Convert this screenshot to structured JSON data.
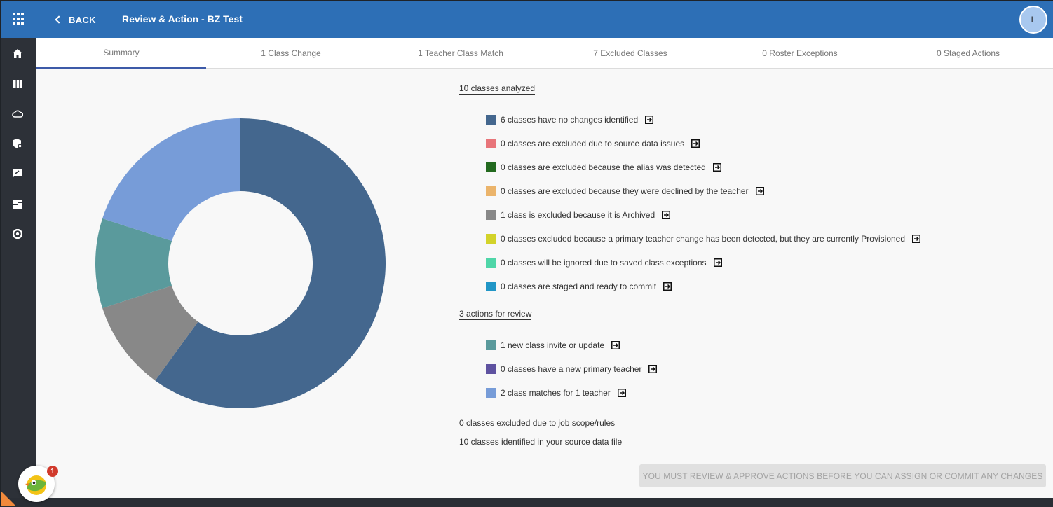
{
  "header": {
    "back_label": "BACK",
    "title": "Review & Action - BZ Test",
    "avatar_initial": "L"
  },
  "sidebar": {
    "icons": [
      "home-icon",
      "columns-icon",
      "cloud-icon",
      "shield-gear-icon",
      "feedback-icon",
      "dashboard-icon",
      "support-icon"
    ]
  },
  "tabs": [
    {
      "label": "Summary",
      "active": true
    },
    {
      "label": "1 Class Change"
    },
    {
      "label": "1 Teacher Class Match"
    },
    {
      "label": "7 Excluded Classes"
    },
    {
      "label": "0 Roster Exceptions"
    },
    {
      "label": "0 Staged Actions"
    }
  ],
  "summary": {
    "analyzed_heading": "10 classes analyzed",
    "analyzed_items": [
      {
        "label": "6 classes have no changes identified",
        "color": "#44678e"
      },
      {
        "label": "0 classes are excluded due to source data issues",
        "color": "#e8757a"
      },
      {
        "label": "0 classes are excluded because the alias was detected",
        "color": "#236a1f"
      },
      {
        "label": "0 classes are excluded because they were declined by the teacher",
        "color": "#ebb46b"
      },
      {
        "label": "1 class is excluded because it is Archived",
        "color": "#888888"
      },
      {
        "label": "0 classes excluded because a primary teacher change has been detected, but they are currently Provisioned",
        "color": "#d3d32a"
      },
      {
        "label": "0 classes will be ignored due to saved class exceptions",
        "color": "#4fd6a8"
      },
      {
        "label": "0 classes are staged and ready to commit",
        "color": "#2196c6"
      }
    ],
    "review_heading": "3 actions for review",
    "review_items": [
      {
        "label": "1 new class invite or update",
        "color": "#5a9a9c"
      },
      {
        "label": "0 classes have a new primary teacher",
        "color": "#5e52a0"
      },
      {
        "label": "2 class matches for 1 teacher",
        "color": "#779cd8"
      }
    ],
    "footer_lines": [
      "0 classes excluded due to job scope/rules",
      "10 classes identified in your source data file"
    ],
    "commit_button": "YOU MUST REVIEW & APPROVE ACTIONS BEFORE YOU CAN ASSIGN OR COMMIT ANY CHANGES"
  },
  "chart_data": {
    "type": "pie",
    "donut": true,
    "slices": [
      {
        "label": "no changes identified",
        "value": 6,
        "color": "#44678e"
      },
      {
        "label": "excluded because Archived",
        "value": 1,
        "color": "#888888"
      },
      {
        "label": "new class invite or update",
        "value": 1,
        "color": "#5a9a9c"
      },
      {
        "label": "class matches for 1 teacher",
        "value": 2,
        "color": "#779cd8"
      }
    ]
  },
  "bot": {
    "notification_count": "1"
  }
}
